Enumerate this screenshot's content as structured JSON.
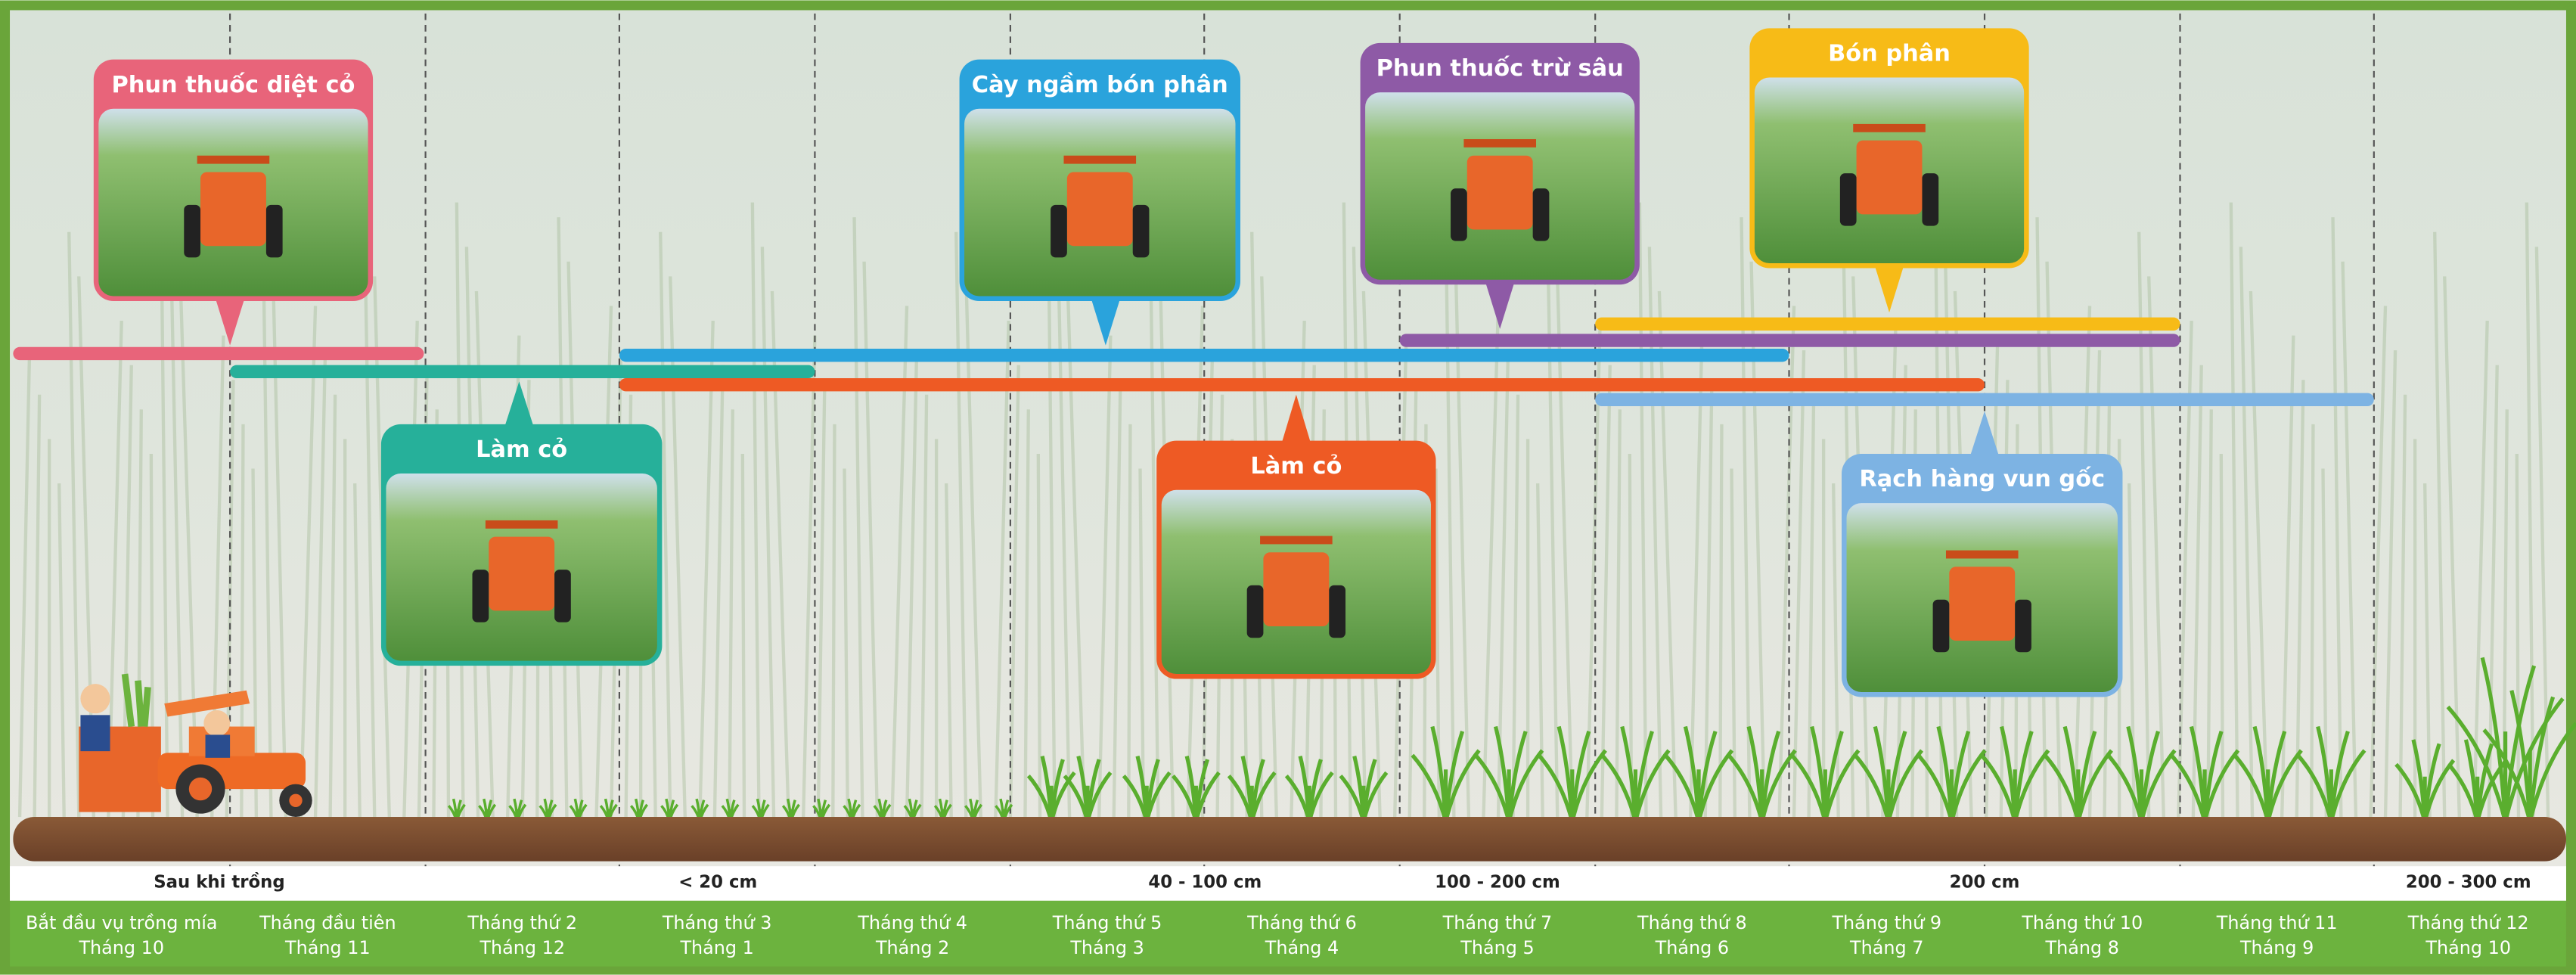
{
  "cards": [
    {
      "title": "Phun thuốc diệt cỏ"
    },
    {
      "title": "Làm cỏ"
    },
    {
      "title": "Cày ngầm bón phân"
    },
    {
      "title": "Làm cỏ"
    },
    {
      "title": "Phun thuốc trừ sâu"
    },
    {
      "title": "Bón phân"
    },
    {
      "title": "Rạch hàng vun gốc"
    }
  ],
  "stages": [
    "Sau khi trồng",
    "< 20 cm",
    "40 - 100 cm",
    "100 - 200 cm",
    "200 cm",
    "200 - 300 cm"
  ],
  "months": [
    [
      "Bắt đầu vụ trồng mía",
      "Tháng 10"
    ],
    [
      "Tháng đầu tiên",
      "Tháng 11"
    ],
    [
      "Tháng thứ 2",
      "Tháng 12"
    ],
    [
      "Tháng thứ 3",
      "Tháng 1"
    ],
    [
      "Tháng thứ 4",
      "Tháng 2"
    ],
    [
      "Tháng thứ 5",
      "Tháng 3"
    ],
    [
      "Tháng thứ 6",
      "Tháng 4"
    ],
    [
      "Tháng thứ 7",
      "Tháng 5"
    ],
    [
      "Tháng thứ 8",
      "Tháng 6"
    ],
    [
      "Tháng thứ 9",
      "Tháng 7"
    ],
    [
      "Tháng thứ 10",
      "Tháng 8"
    ],
    [
      "Tháng thứ 11",
      "Tháng 9"
    ],
    [
      "Tháng thứ 12",
      "Tháng 10"
    ]
  ]
}
